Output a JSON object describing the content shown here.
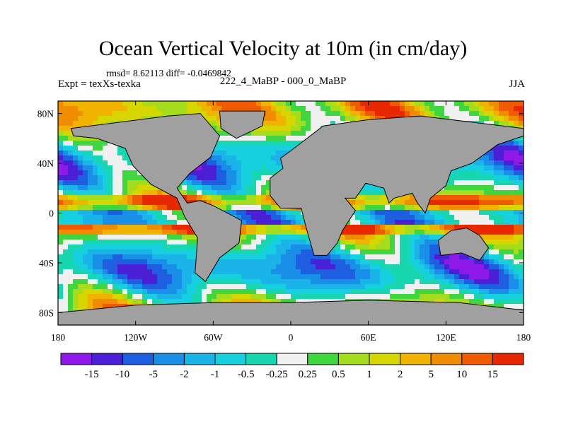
{
  "title": "Ocean Vertical Velocity at 10m (in cm/day)",
  "stats": "rmsd= 8.62113 diff= -0.0469842",
  "experiment": "Expt = texXs-texka",
  "difference": "222_4_MaBP - 000_0_MaBP",
  "season": "JJA",
  "lat_labels": [
    "80N",
    "40N",
    "0",
    "40S",
    "80S"
  ],
  "lat_values": [
    80,
    40,
    0,
    -40,
    -80
  ],
  "lon_labels": [
    "180",
    "120W",
    "60W",
    "0",
    "60E",
    "120E",
    "180"
  ],
  "lon_values": [
    -180,
    -120,
    -60,
    0,
    60,
    120,
    180
  ],
  "colorbar": {
    "labels": [
      "-15",
      "-10",
      "-5",
      "-2",
      "-1",
      "-0.5",
      "-0.25",
      "0.25",
      "0.5",
      "1",
      "2",
      "5",
      "10",
      "15"
    ],
    "colors": [
      "#8f1ae8",
      "#4a1fd6",
      "#1e5ee0",
      "#1a8fe8",
      "#1ab4e8",
      "#16d0e0",
      "#18d6b0",
      "#f0f0f0",
      "#40d640",
      "#a6dc1e",
      "#d6d600",
      "#f0b400",
      "#f08c00",
      "#f05a00",
      "#e82800"
    ]
  },
  "land_color": "#a0a0a0"
}
